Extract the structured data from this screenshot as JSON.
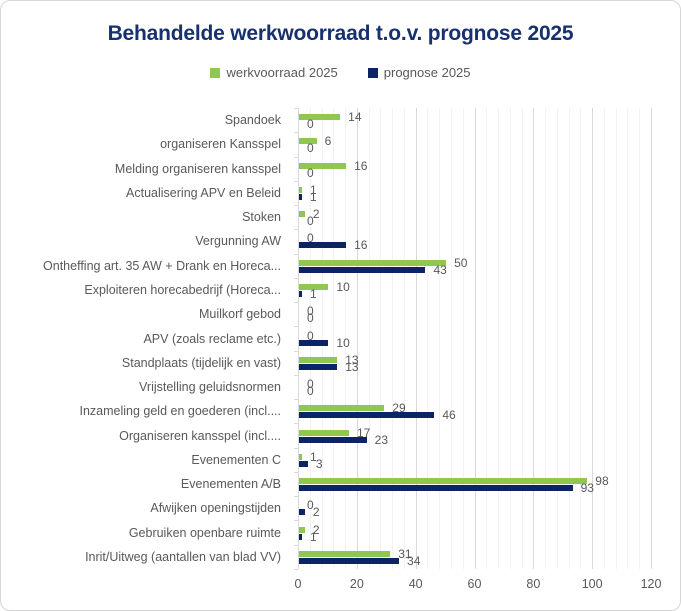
{
  "chart_data": {
    "type": "bar",
    "orientation": "horizontal",
    "title": "Behandelde werkwoorraad t.o.v. prognose 2025",
    "legend_position": "top",
    "grid": true,
    "categories": [
      "Spandoek",
      "organiseren Kansspel",
      "Melding organiseren kansspel",
      "Actualisering APV en Beleid",
      "Stoken",
      "Vergunning AW",
      "Ontheffing art. 35 AW + Drank en Horeca...",
      "Exploiteren horecabedrijf (Horeca...",
      "Muilkorf gebod",
      "APV (zoals reclame etc.)",
      "Standplaats (tijdelijk en vast)",
      "Vrijstelling geluidsnormen",
      "Inzameling geld en goederen (incl....",
      "Organiseren kansspel (incl....",
      "Evenementen C",
      "Evenementen A/B",
      "Afwijken openingstijden",
      "Gebruiken openbare ruimte",
      "Inrit/Uitweg (aantallen van blad VV)"
    ],
    "series": [
      {
        "name": "werkvoorraad 2025",
        "color": "#8FC750",
        "values": [
          14,
          6,
          16,
          1,
          2,
          0,
          50,
          10,
          0,
          0,
          13,
          0,
          29,
          17,
          1,
          98,
          0,
          2,
          31
        ]
      },
      {
        "name": "prognose 2025",
        "color": "#0D2464",
        "values": [
          0,
          0,
          0,
          1,
          0,
          16,
          43,
          1,
          0,
          10,
          13,
          0,
          46,
          23,
          3,
          93,
          2,
          1,
          34
        ]
      }
    ],
    "xlabel": "",
    "ylabel": "",
    "xlim": [
      0,
      120
    ],
    "x_ticks": [
      "0",
      "20",
      "40",
      "60",
      "80",
      "100",
      "120"
    ],
    "x_major_unit": 20,
    "x_minor_unit": 4
  },
  "colors": {
    "title": "#17316F",
    "text": "#595959",
    "gridline_major": "#D9D9D9",
    "gridline_minor": "#F2F2F2",
    "axis": "#D9D9D9",
    "border": "#D6D6D6",
    "background": "#FFFFFF"
  }
}
